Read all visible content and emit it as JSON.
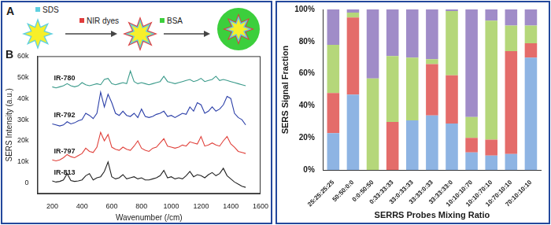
{
  "diagram": {
    "panel_label": "A",
    "steps": [
      {
        "label": "SDS",
        "color": "#5fd0e0"
      },
      {
        "label": "NIR dyes",
        "color": "#e03c3c"
      },
      {
        "label": "BSA",
        "color": "#3ccf3c"
      }
    ]
  },
  "chart_data": [
    {
      "type": "line",
      "panel_label": "B",
      "x_label": "Wavenumber (/cm)",
      "y_label": "SERS Intensity (a.u.)",
      "x": [
        200,
        225,
        250,
        275,
        300,
        325,
        350,
        375,
        400,
        425,
        450,
        475,
        500,
        525,
        550,
        575,
        600,
        625,
        650,
        675,
        700,
        725,
        750,
        775,
        800,
        825,
        850,
        875,
        900,
        925,
        950,
        975,
        1000,
        1025,
        1050,
        1075,
        1100,
        1125,
        1150,
        1175,
        1200,
        1225,
        1250,
        1275,
        1300,
        1325,
        1350,
        1375,
        1400,
        1425,
        1450,
        1475,
        1500
      ],
      "series": [
        {
          "name": "IR-780",
          "color": "#3a9a8a",
          "values": [
            45500,
            45000,
            45500,
            46000,
            47000,
            46000,
            45500,
            46000,
            47500,
            46500,
            46000,
            46500,
            47000,
            46500,
            49000,
            49500,
            47000,
            46500,
            47000,
            47500,
            47000,
            53000,
            48000,
            47000,
            47500,
            47000,
            46500,
            47000,
            47500,
            48000,
            50500,
            48000,
            47500,
            47000,
            47500,
            48000,
            48500,
            49000,
            48000,
            48500,
            49500,
            48000,
            48500,
            49000,
            50500,
            48500,
            49000,
            48500,
            48000,
            47500,
            47000,
            46500,
            46000
          ]
        },
        {
          "name": "IR-792",
          "color": "#2b3fa8",
          "values": [
            28000,
            27500,
            27000,
            27500,
            29000,
            28000,
            28500,
            29500,
            30000,
            33000,
            32000,
            30500,
            33000,
            43000,
            36000,
            42000,
            38000,
            33000,
            32000,
            34000,
            32000,
            31500,
            33000,
            31000,
            35000,
            31500,
            31000,
            31500,
            32500,
            33000,
            34000,
            31500,
            32000,
            31000,
            32000,
            33000,
            32500,
            36000,
            34000,
            38000,
            37000,
            33000,
            34000,
            36000,
            34000,
            35000,
            37000,
            41000,
            40000,
            33000,
            31000,
            30000,
            27500
          ]
        },
        {
          "name": "IR-797",
          "color": "#e0403a",
          "values": [
            11000,
            10500,
            11000,
            12000,
            13500,
            12500,
            12000,
            13000,
            14000,
            16500,
            15000,
            14500,
            17000,
            24000,
            20000,
            23000,
            17000,
            16000,
            15500,
            17000,
            16000,
            15500,
            17500,
            20000,
            16500,
            15500,
            15000,
            16500,
            17000,
            19000,
            21000,
            17500,
            17000,
            16500,
            17000,
            18000,
            17500,
            19500,
            19000,
            18500,
            22000,
            17500,
            18000,
            19000,
            18000,
            17500,
            20000,
            22000,
            18500,
            17000,
            15000,
            14500,
            14000
          ]
        },
        {
          "name": "IR-813",
          "color": "#222222",
          "values": [
            1000,
            500,
            800,
            1500,
            4500,
            1200,
            800,
            1000,
            1500,
            3500,
            4500,
            1500,
            2500,
            3000,
            5500,
            10000,
            3000,
            2000,
            2500,
            4000,
            2000,
            2500,
            3000,
            2000,
            2500,
            1500,
            1500,
            2000,
            2500,
            3500,
            6000,
            2500,
            3000,
            2000,
            2500,
            2000,
            3500,
            5500,
            3000,
            4000,
            3500,
            2500,
            4000,
            5000,
            3500,
            4500,
            7000,
            3500,
            2000,
            500,
            -500,
            -1500,
            -2000
          ]
        }
      ],
      "xlim": [
        100,
        1600
      ],
      "xticks": [
        200,
        400,
        600,
        800,
        1000,
        1200,
        1400,
        1600
      ],
      "ylim": [
        -5000,
        60000
      ],
      "yticks": [
        {
          "value": 0,
          "label": "0"
        },
        {
          "value": 10000,
          "label": "10k"
        },
        {
          "value": 20000,
          "label": "20k"
        },
        {
          "value": 30000,
          "label": "30k"
        },
        {
          "value": 40000,
          "label": "40k"
        },
        {
          "value": 50000,
          "label": "50k"
        },
        {
          "value": 60000,
          "label": "60k"
        }
      ],
      "grid": false
    },
    {
      "type": "bar",
      "stacked": true,
      "x_label": "SERRS Probes Mixing Ratio",
      "y_label": "SERS Signal Fraction",
      "categories": [
        "25:25:25:25",
        "50:50:0:0",
        "0:0:50:50",
        "0:33:33:33",
        "33:0:33:33",
        "33:33:0:33",
        "33:33:33:0",
        "10:10:10:70",
        "10:10:70:10",
        "10:70:10:10",
        "70:10:10:10"
      ],
      "series": [
        {
          "color": "#8eb4e3",
          "values": [
            23,
            47,
            0,
            0,
            31,
            34,
            29,
            11,
            9,
            10,
            70
          ]
        },
        {
          "color": "#e46c6a",
          "values": [
            25,
            48,
            0,
            30,
            0,
            32,
            30,
            9,
            10,
            64,
            9
          ]
        },
        {
          "color": "#b5d77a",
          "values": [
            30,
            3,
            57,
            41,
            39,
            3,
            40,
            13,
            74,
            16,
            11
          ]
        },
        {
          "color": "#a08cc8",
          "values": [
            22,
            2,
            43,
            29,
            30,
            31,
            1,
            67,
            7,
            10,
            10
          ]
        }
      ],
      "ylim": [
        0,
        100
      ],
      "yticks": [
        {
          "value": 0,
          "label": "0%"
        },
        {
          "value": 20,
          "label": "20%"
        },
        {
          "value": 40,
          "label": "40%"
        },
        {
          "value": 60,
          "label": "60%"
        },
        {
          "value": 80,
          "label": "80%"
        },
        {
          "value": 100,
          "label": "100%"
        }
      ],
      "grid": false
    }
  ]
}
